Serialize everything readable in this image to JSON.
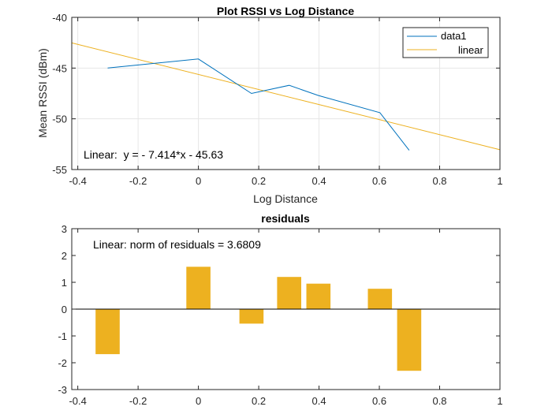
{
  "chart_data": [
    {
      "type": "line",
      "title": "Plot RSSI vs Log Distance",
      "xlabel": "Log Distance",
      "ylabel": "Mean RSSI (dBm)",
      "xlim": [
        -0.42,
        1
      ],
      "ylim": [
        -55,
        -40
      ],
      "xticks": [
        -0.4,
        -0.2,
        0,
        0.2,
        0.4,
        0.6,
        0.8,
        1
      ],
      "xtick_labels": [
        "-0.4",
        "-0.2",
        "0",
        "0.2",
        "0.4",
        "0.6",
        "0.8",
        "1"
      ],
      "yticks": [
        -55,
        -50,
        -45,
        -40
      ],
      "ytick_labels": [
        "-55",
        "-50",
        "-45",
        "-40"
      ],
      "grid": true,
      "legend_position": "top-right",
      "series": [
        {
          "name": "data1",
          "color": "#0072BD",
          "x": [
            -0.301,
            0,
            0.176,
            0.301,
            0.398,
            0.602,
            0.699
          ],
          "y": [
            -45.0,
            -44.1,
            -47.5,
            -46.7,
            -47.7,
            -49.4,
            -53.1
          ]
        },
        {
          "name": "linear",
          "color": "#EDB120",
          "fit": {
            "slope": -7.414,
            "intercept": -45.63
          }
        }
      ],
      "annotation": "Linear:  y = - 7.414*x - 45.63"
    },
    {
      "type": "bar",
      "title": "residuals",
      "xlim": [
        -0.42,
        1
      ],
      "ylim": [
        -3,
        3
      ],
      "xticks": [
        -0.4,
        -0.2,
        0,
        0.2,
        0.4,
        0.6,
        0.8,
        1
      ],
      "xtick_labels": [
        "-0.4",
        "-0.2",
        "0",
        "0.2",
        "0.4",
        "0.6",
        "0.8",
        "1"
      ],
      "yticks": [
        -3,
        -2,
        -1,
        0,
        1,
        2,
        3
      ],
      "ytick_labels": [
        "-3",
        "-2",
        "-1",
        "0",
        "1",
        "2",
        "3"
      ],
      "grid": false,
      "bar_color": "#EDB120",
      "x": [
        -0.301,
        0,
        0.176,
        0.301,
        0.398,
        0.602,
        0.699
      ],
      "values": [
        -1.68,
        1.58,
        -0.54,
        1.2,
        0.95,
        0.76,
        -2.3
      ],
      "annotation": "Linear: norm of residuals = 3.6809"
    }
  ]
}
